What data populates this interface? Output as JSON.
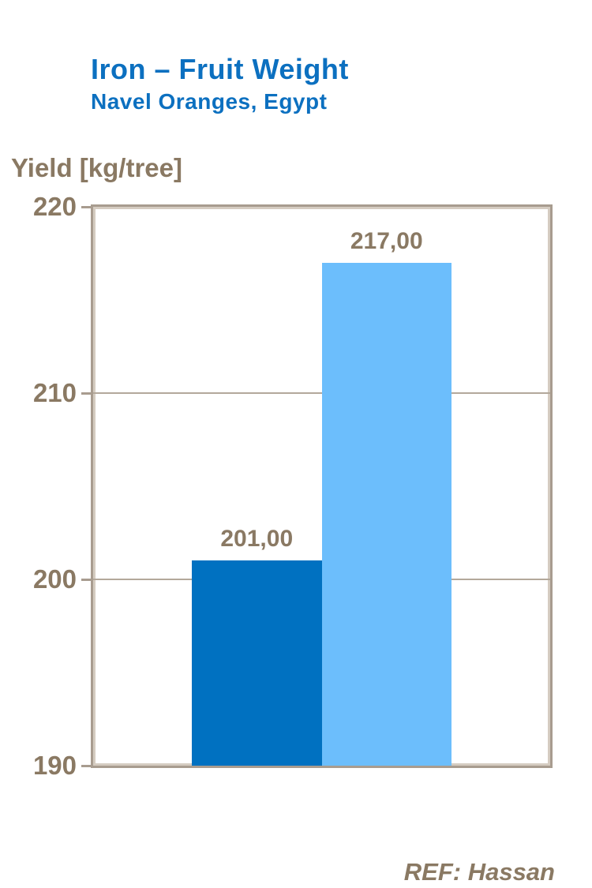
{
  "chart_data": {
    "type": "bar",
    "title": "Iron – Fruit Weight",
    "subtitle": "Navel Oranges, Egypt",
    "ylabel": "Yield [kg/tree]",
    "ylim": [
      190,
      220
    ],
    "yticks": [
      "220",
      "210",
      "200",
      "190"
    ],
    "gridlines": [
      210,
      200
    ],
    "grid": "horizontal major lines on",
    "legend": "none",
    "bars": [
      {
        "value": 201.0,
        "label": "201,00",
        "color": "#0071C1"
      },
      {
        "value": 217.0,
        "label": "217,00",
        "color": "#6CBEFC"
      }
    ],
    "reference": "REF: Hassan",
    "colors": {
      "title_blue": "#0C70C0",
      "text_brown": "#8A7963",
      "axis_border_outer": "#A89C8F",
      "axis_border_inner": "#D5CCC1",
      "gridline": "#B3A89B",
      "background": "#FFFFFF"
    }
  }
}
